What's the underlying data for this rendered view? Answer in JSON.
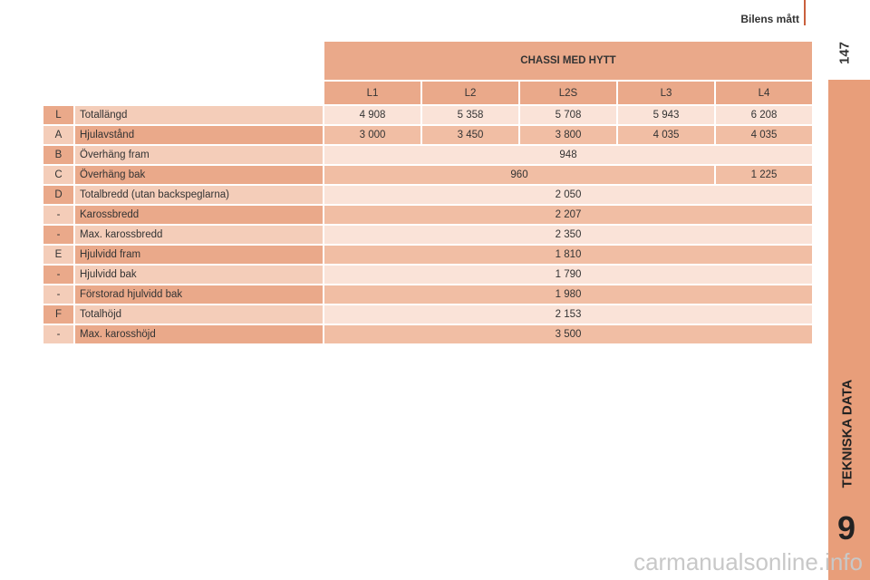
{
  "header": {
    "section": "Bilens mått",
    "page_number": "147"
  },
  "sidebar": {
    "chapter_title": "TEKNISKA DATA",
    "chapter_number": "9"
  },
  "table": {
    "group_header": "CHASSI MED HYTT",
    "columns": [
      "L1",
      "L2",
      "L2S",
      "L3",
      "L4"
    ],
    "rows": [
      {
        "code": "L",
        "label": "Totallängd",
        "values": [
          "4 908",
          "5 358",
          "5 708",
          "5 943",
          "6 208"
        ]
      },
      {
        "code": "A",
        "label": "Hjulavstånd",
        "values": [
          "3 000",
          "3 450",
          "3 800",
          "4 035",
          "4 035"
        ]
      },
      {
        "code": "B",
        "label": "Överhäng fram",
        "values": [
          "948"
        ]
      },
      {
        "code": "C",
        "label": "Överhäng bak",
        "values": [
          "960",
          "1 225"
        ]
      },
      {
        "code": "D",
        "label": "Totalbredd (utan backspeglarna)",
        "values": [
          "2 050"
        ]
      },
      {
        "code": "-",
        "label": "Karossbredd",
        "values": [
          "2 207"
        ]
      },
      {
        "code": "-",
        "label": "Max. karossbredd",
        "values": [
          "2 350"
        ]
      },
      {
        "code": "E",
        "label": "Hjulvidd fram",
        "values": [
          "1 810"
        ]
      },
      {
        "code": "-",
        "label": "Hjulvidd bak",
        "values": [
          "1 790"
        ]
      },
      {
        "code": "-",
        "label": "Förstorad hjulvidd bak",
        "values": [
          "1 980"
        ]
      },
      {
        "code": "F",
        "label": "Totalhöjd",
        "values": [
          "2 153"
        ]
      },
      {
        "code": "-",
        "label": "Max. karosshöjd",
        "values": [
          "3 500"
        ]
      }
    ]
  },
  "watermark": "carmanualsonline.info"
}
